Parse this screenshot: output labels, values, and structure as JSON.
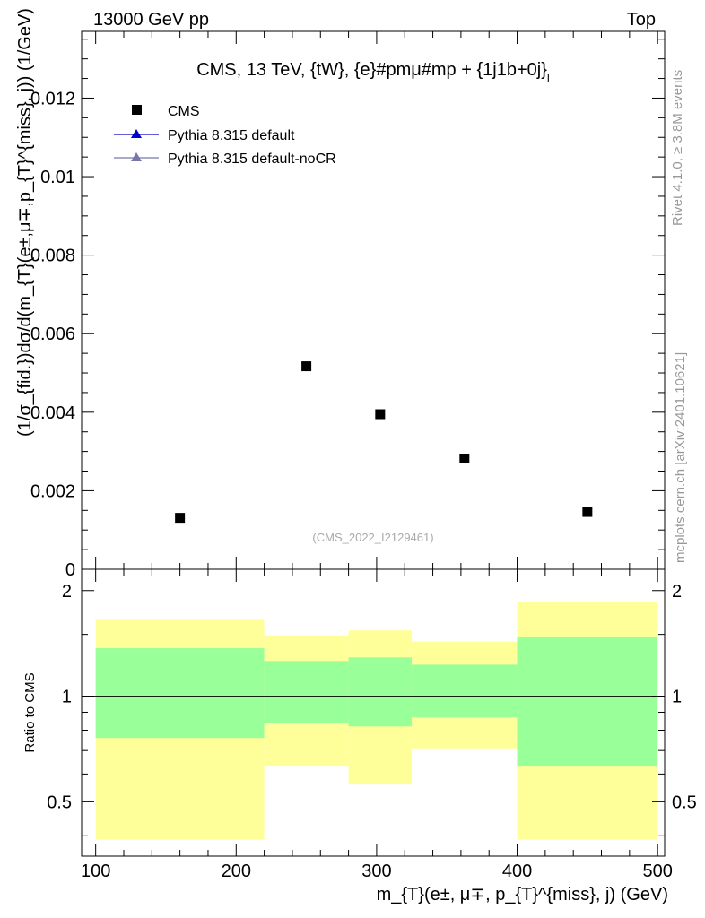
{
  "header": {
    "left": "13000 GeV pp",
    "right": "Top"
  },
  "side_labels": {
    "rivet": "Rivet 4.1.0, ≥ 3.8M events",
    "mcplots": "mcplots.cern.ch [arXiv:2401.10621]"
  },
  "colors": {
    "cms": "#000000",
    "pythia_default": "#0000cc",
    "pythia_nocr": "#7777aa",
    "band_outer": "#ffff99",
    "band_inner": "#99ff99",
    "frame": "#000000"
  },
  "chart_data": [
    {
      "type": "scatter",
      "title": "CMS, 13 TeV, {tW}, {e}#pmμ#mp + {1j1b+0j}",
      "title_suffix": "l",
      "ylabel": "(1/σ_{fid.})dσ/d(m_{T}(e±,μ∓,p_{T}^{miss}, j)) (1/GeV)",
      "xlim": [
        90,
        505
      ],
      "ylim": [
        0,
        0.0137
      ],
      "y_ticks": [
        0.002,
        0.004,
        0.006,
        0.008,
        0.01,
        0.012
      ],
      "y_tick_labels": [
        "0.002",
        "0.004",
        "0.006",
        "0.008",
        "0.01",
        "0.012"
      ],
      "y_zero_label": "0",
      "legend": [
        {
          "name": "CMS",
          "marker": "square"
        },
        {
          "name": "Pythia 8.315 default",
          "marker": "triangle"
        },
        {
          "name": "Pythia 8.315 default-noCR",
          "marker": "triangle"
        }
      ],
      "reference": "(CMS_2022_I2129461)",
      "series": [
        {
          "name": "CMS",
          "x": [
            160,
            250,
            302.5,
            362.5,
            450
          ],
          "y": [
            0.00131,
            0.00517,
            0.00395,
            0.00282,
            0.00146
          ]
        },
        {
          "name": "Pythia 8.315 default",
          "x": [],
          "y": []
        },
        {
          "name": "Pythia 8.315 default-noCR",
          "x": [],
          "y": []
        }
      ]
    },
    {
      "type": "area",
      "ylabel": "Ratio to CMS",
      "xlabel": "m_{T}(e±, μ∓, p_{T}^{miss}, j) (GeV)",
      "xlim": [
        90,
        505
      ],
      "ylim": [
        0.35,
        2.3
      ],
      "x_ticks": [
        100,
        200,
        300,
        400,
        500
      ],
      "x_tick_labels": [
        "100",
        "200",
        "300",
        "400",
        "500"
      ],
      "y_ticks": [
        0.5,
        1,
        2
      ],
      "y_tick_labels": [
        "0.5",
        "1",
        "2"
      ],
      "bins": [
        {
          "lo": 100,
          "hi": 220,
          "inner": [
            0.76,
            1.37
          ],
          "outer": [
            0.39,
            1.65
          ]
        },
        {
          "lo": 220,
          "hi": 280,
          "inner": [
            0.84,
            1.26
          ],
          "outer": [
            0.63,
            1.49
          ]
        },
        {
          "lo": 280,
          "hi": 325,
          "inner": [
            0.82,
            1.29
          ],
          "outer": [
            0.56,
            1.54
          ]
        },
        {
          "lo": 325,
          "hi": 400,
          "inner": [
            0.87,
            1.23
          ],
          "outer": [
            0.71,
            1.43
          ]
        },
        {
          "lo": 400,
          "hi": 500,
          "inner": [
            0.63,
            1.48
          ],
          "outer": [
            0.39,
            1.85
          ]
        }
      ],
      "reference_line": 1
    }
  ]
}
